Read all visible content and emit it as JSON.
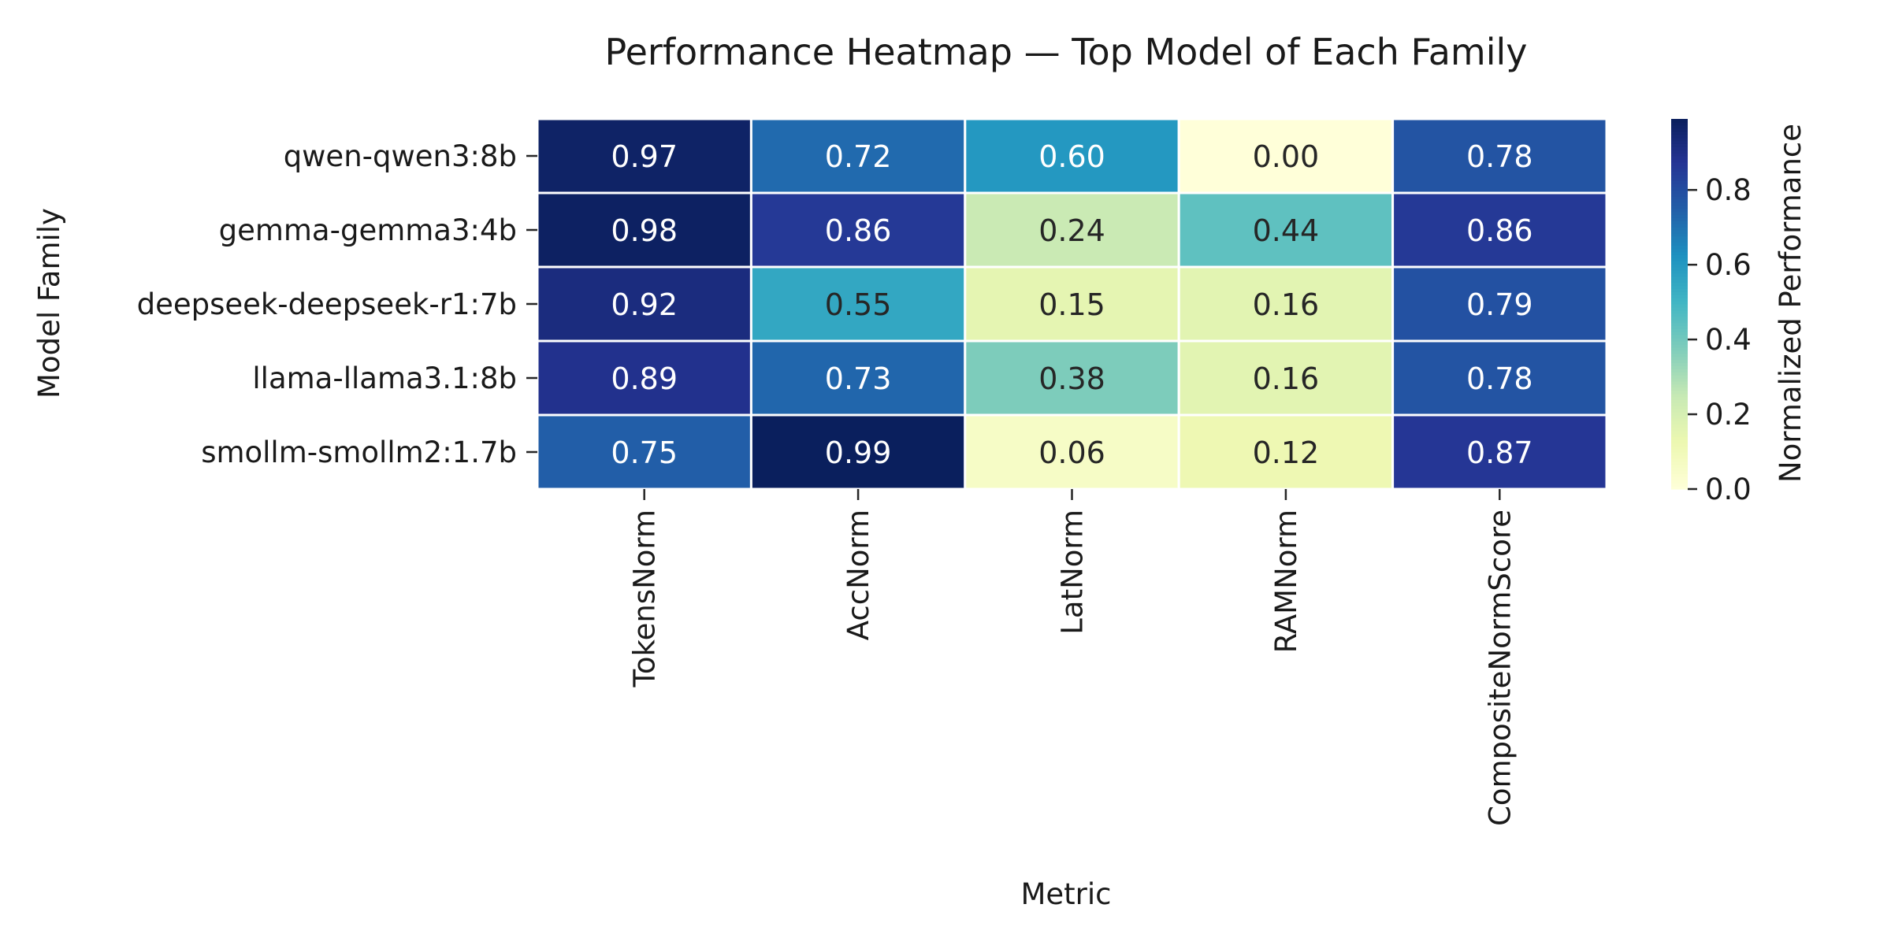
{
  "chart_data": {
    "type": "heatmap",
    "title": "Performance Heatmap — Top Model of Each Family",
    "xlabel": "Metric",
    "ylabel": "Model Family",
    "colorbar_label": "Normalized Performance",
    "colormap": "YlGnBu",
    "vmin": 0.0,
    "vmax": 1.0,
    "colorbar_ticks": [
      "0.0",
      "0.2",
      "0.4",
      "0.6",
      "0.8"
    ],
    "colorbar_tick_values": [
      0.0,
      0.2,
      0.4,
      0.6,
      0.8
    ],
    "x_categories": [
      "TokensNorm",
      "AccNorm",
      "LatNorm",
      "RAMNorm",
      "CompositeNormScore"
    ],
    "y_categories": [
      "qwen-qwen3:8b",
      "gemma-gemma3:4b",
      "deepseek-deepseek-r1:7b",
      "llama-llama3.1:8b",
      "smollm-smollm2:1.7b"
    ],
    "values": [
      [
        0.97,
        0.72,
        0.6,
        0.0,
        0.78
      ],
      [
        0.98,
        0.86,
        0.24,
        0.44,
        0.86
      ],
      [
        0.92,
        0.55,
        0.15,
        0.16,
        0.79
      ],
      [
        0.89,
        0.73,
        0.38,
        0.16,
        0.78
      ],
      [
        0.75,
        0.99,
        0.06,
        0.12,
        0.87
      ]
    ],
    "value_format": "0.00",
    "grid": false
  }
}
